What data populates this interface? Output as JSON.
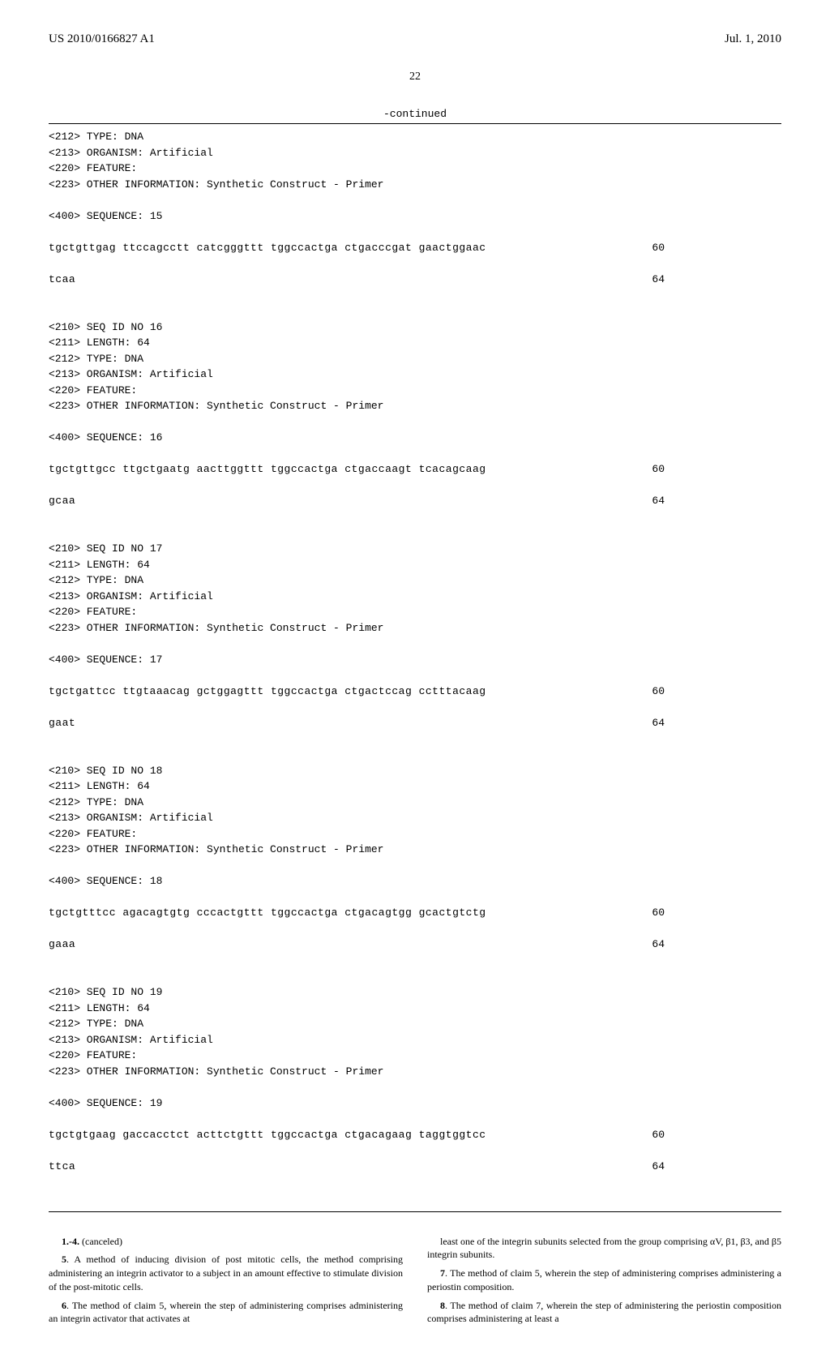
{
  "header": {
    "left": "US 2010/0166827 A1",
    "right": "Jul. 1, 2010"
  },
  "page_number": "22",
  "continued": "-continued",
  "sequences": [
    {
      "meta": "<212> TYPE: DNA\n<213> ORGANISM: Artificial\n<220> FEATURE:\n<223> OTHER INFORMATION: Synthetic Construct - Primer\n\n<400> SEQUENCE: 15",
      "lines": [
        {
          "text": "tgctgttgag ttccagcctt catcgggttt tggccactga ctgacccgat gaactggaac",
          "num": "60"
        },
        {
          "text": "tcaa",
          "num": "64"
        }
      ]
    },
    {
      "meta": "<210> SEQ ID NO 16\n<211> LENGTH: 64\n<212> TYPE: DNA\n<213> ORGANISM: Artificial\n<220> FEATURE:\n<223> OTHER INFORMATION: Synthetic Construct - Primer\n\n<400> SEQUENCE: 16",
      "lines": [
        {
          "text": "tgctgttgcc ttgctgaatg aacttggttt tggccactga ctgaccaagt tcacagcaag",
          "num": "60"
        },
        {
          "text": "gcaa",
          "num": "64"
        }
      ]
    },
    {
      "meta": "<210> SEQ ID NO 17\n<211> LENGTH: 64\n<212> TYPE: DNA\n<213> ORGANISM: Artificial\n<220> FEATURE:\n<223> OTHER INFORMATION: Synthetic Construct - Primer\n\n<400> SEQUENCE: 17",
      "lines": [
        {
          "text": "tgctgattcc ttgtaaacag gctggagttt tggccactga ctgactccag cctttacaag",
          "num": "60"
        },
        {
          "text": "gaat",
          "num": "64"
        }
      ]
    },
    {
      "meta": "<210> SEQ ID NO 18\n<211> LENGTH: 64\n<212> TYPE: DNA\n<213> ORGANISM: Artificial\n<220> FEATURE:\n<223> OTHER INFORMATION: Synthetic Construct - Primer\n\n<400> SEQUENCE: 18",
      "lines": [
        {
          "text": "tgctgtttcc agacagtgtg cccactgttt tggccactga ctgacagtgg gcactgtctg",
          "num": "60"
        },
        {
          "text": "gaaa",
          "num": "64"
        }
      ]
    },
    {
      "meta": "<210> SEQ ID NO 19\n<211> LENGTH: 64\n<212> TYPE: DNA\n<213> ORGANISM: Artificial\n<220> FEATURE:\n<223> OTHER INFORMATION: Synthetic Construct - Primer\n\n<400> SEQUENCE: 19",
      "lines": [
        {
          "text": "tgctgtgaag gaccacctct acttctgttt tggccactga ctgacagaag taggtggtcc",
          "num": "60"
        },
        {
          "text": "ttca",
          "num": "64"
        }
      ]
    }
  ],
  "claims": {
    "left": [
      {
        "num": "1.-4.",
        "text": " (canceled)"
      },
      {
        "num": "5",
        "text": ". A method of inducing division of post mitotic cells, the method comprising administering an integrin activator to a subject in an amount effective to stimulate division of the post-mitotic cells."
      },
      {
        "num": "6",
        "text": ". The method of claim 5, wherein the step of administering comprises administering an integrin activator that activates at"
      }
    ],
    "right": [
      {
        "num": "",
        "text": "least one of the integrin subunits selected from the group comprising αV, β1, β3, and β5 integrin subunits."
      },
      {
        "num": "7",
        "text": ". The method of claim 5, wherein the step of administering comprises administering a periostin composition."
      },
      {
        "num": "8",
        "text": ". The method of claim 7, wherein the step of administering the periostin composition comprises administering at least a"
      }
    ]
  }
}
